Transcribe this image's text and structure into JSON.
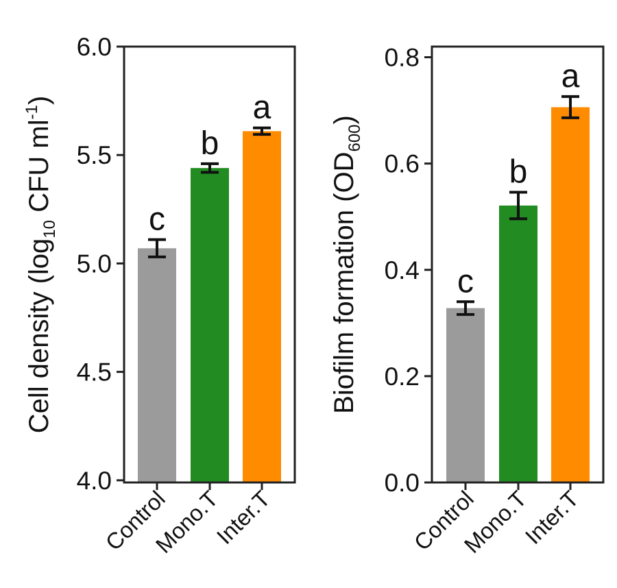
{
  "chart_data": [
    {
      "type": "bar",
      "title": "",
      "categories": [
        "Control",
        "Mono.T",
        "Inter.T"
      ],
      "values": [
        5.07,
        5.44,
        5.61
      ],
      "errors": [
        0.04,
        0.02,
        0.015
      ],
      "significance": [
        "c",
        "b",
        "a"
      ],
      "colors": [
        "#9b9b9b",
        "#228b22",
        "#ff8c00"
      ],
      "ylim": [
        3.99,
        6.0
      ],
      "yticks": [
        4.0,
        4.5,
        5.0,
        5.5,
        6.0
      ],
      "ytick_labels": [
        "4.0",
        "4.5",
        "5.0",
        "5.5",
        "6.0"
      ],
      "xlabel": "",
      "ylabel": {
        "prefix": "Cell density (log",
        "sub": "10",
        "mid": " CFU ml",
        "sup": "-1",
        "suffix": ")"
      },
      "grid": false
    },
    {
      "type": "bar",
      "title": "",
      "categories": [
        "Control",
        "Mono.T",
        "Inter.T"
      ],
      "values": [
        0.328,
        0.521,
        0.706
      ],
      "errors": [
        0.012,
        0.025,
        0.02
      ],
      "significance": [
        "c",
        "b",
        "a"
      ],
      "colors": [
        "#9b9b9b",
        "#228b22",
        "#ff8c00"
      ],
      "ylim": [
        0.0,
        0.82
      ],
      "yticks": [
        0.0,
        0.2,
        0.4,
        0.6,
        0.8
      ],
      "ytick_labels": [
        "0.0",
        "0.2",
        "0.4",
        "0.6",
        "0.8"
      ],
      "xlabel": "",
      "ylabel": {
        "prefix": "Biofilm formation (OD",
        "sub": "600",
        "mid": ")",
        "sup": "",
        "suffix": ""
      },
      "grid": false
    }
  ]
}
